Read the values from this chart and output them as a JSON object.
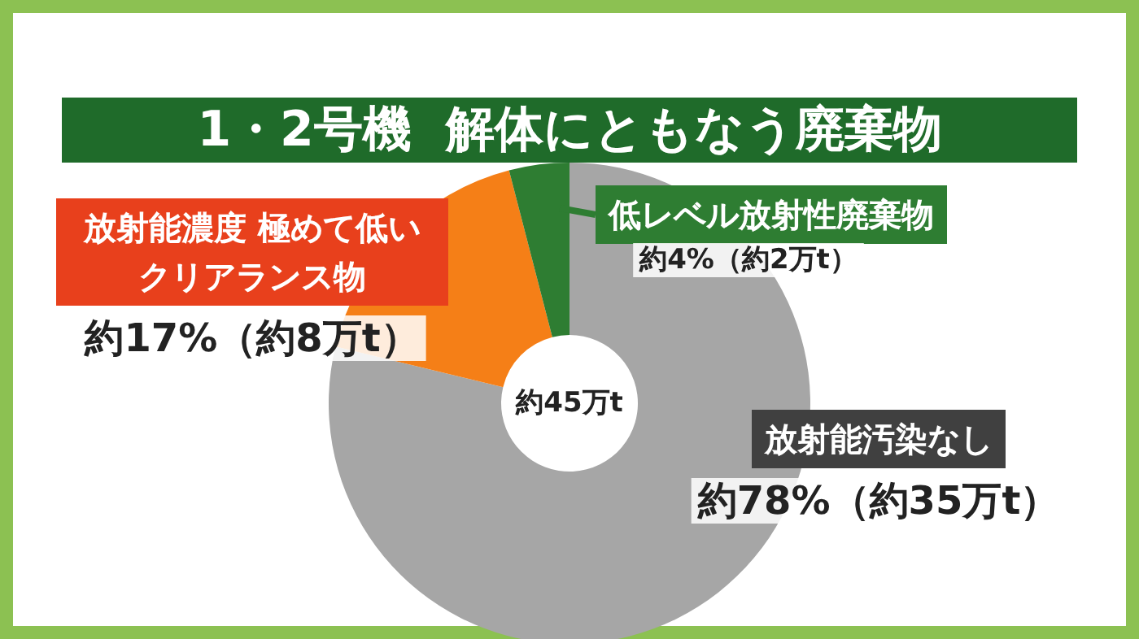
{
  "chart_data": {
    "type": "donut",
    "title": "1・2号機  解体にともなう廃棄物",
    "categories": [
      "放射能汚染なし",
      "放射能濃度 極めて低いクリアランス物",
      "低レベル放射性廃棄物"
    ],
    "values": [
      78,
      17,
      4
    ],
    "colors": [
      "#a6a6a6",
      "#f57f17",
      "#2e7d32"
    ],
    "value_labels": [
      "約78%（約35万t）",
      "約17%（約8万t）",
      "約4%（約2万t）"
    ],
    "annotations": [
      "約45万t"
    ]
  }
}
